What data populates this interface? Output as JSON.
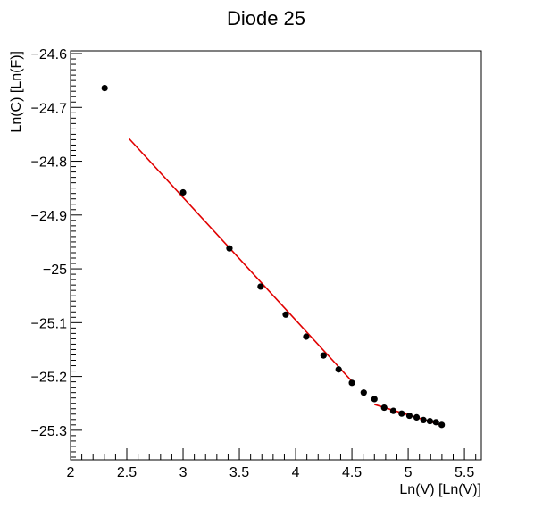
{
  "chart_data": {
    "type": "scatter",
    "title": "Diode 25",
    "xlabel": "Ln(V) [Ln(V)]",
    "ylabel": "Ln(C) [Ln(F)]",
    "xlim": [
      2.0,
      5.65
    ],
    "ylim": [
      -25.355,
      -24.595
    ],
    "x_ticks": [
      2,
      2.5,
      3,
      3.5,
      4,
      4.5,
      5,
      5.5
    ],
    "x_tick_labels": [
      "2",
      "2.5",
      "3",
      "3.5",
      "4",
      "4.5",
      "5",
      "5.5"
    ],
    "y_ticks": [
      -24.6,
      -24.7,
      -24.8,
      -24.9,
      -25,
      -25.1,
      -25.2,
      -25.3
    ],
    "y_tick_labels": [
      "−24.6",
      "−24.7",
      "−24.8",
      "−24.9",
      "−25",
      "−25.1",
      "−25.2",
      "−25.3"
    ],
    "grid": false,
    "marker_color": "#000000",
    "fit_color": "#e00000",
    "series": [
      {
        "points": [
          [
            2.303,
            -24.664
          ],
          [
            3.0,
            -24.858
          ],
          [
            3.412,
            -24.962
          ],
          [
            3.689,
            -25.033
          ],
          [
            3.912,
            -25.085
          ],
          [
            4.094,
            -25.126
          ],
          [
            4.248,
            -25.161
          ],
          [
            4.382,
            -25.187
          ],
          [
            4.5,
            -25.212
          ],
          [
            4.605,
            -25.23
          ],
          [
            4.7,
            -25.242
          ],
          [
            4.787,
            -25.258
          ],
          [
            4.868,
            -25.264
          ],
          [
            4.942,
            -25.269
          ],
          [
            5.011,
            -25.273
          ],
          [
            5.075,
            -25.276
          ],
          [
            5.136,
            -25.281
          ],
          [
            5.193,
            -25.283
          ],
          [
            5.247,
            -25.285
          ],
          [
            5.298,
            -25.29
          ]
        ]
      }
    ],
    "fits": [
      {
        "x": [
          2.52,
          4.5
        ],
        "y": [
          -24.758,
          -25.209
        ]
      },
      {
        "x": [
          4.7,
          5.32
        ],
        "y": [
          -25.252,
          -25.292
        ]
      }
    ]
  }
}
